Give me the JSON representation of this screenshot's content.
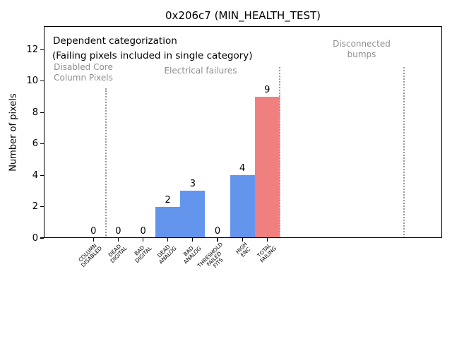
{
  "chart_data": {
    "type": "bar",
    "title": "0x206c7 (MIN_HEALTH_TEST)",
    "ylabel": "Number of pixels",
    "xlabel": "",
    "categories": [
      "COLUMN\nDISABLED",
      "DEAD\nDIGITAL",
      "BAD\nDIGITAL",
      "DEAD\nANALOG",
      "BAD\nANALOG",
      "THRESHOLD\nFAILED\nFITS",
      "HIGH\nENC",
      "TOTAL\nFAILING"
    ],
    "values": [
      0,
      0,
      0,
      2,
      3,
      0,
      4,
      9
    ],
    "colors": [
      "#6495ed",
      "#6495ed",
      "#6495ed",
      "#6495ed",
      "#6495ed",
      "#6495ed",
      "#6495ed",
      "#f08080"
    ],
    "yticks": [
      0,
      2,
      4,
      6,
      8,
      10,
      12
    ],
    "ylim": [
      0,
      13.5
    ],
    "grid": false,
    "legend": null,
    "annotations": {
      "header": "Dependent categorization",
      "subheader": "(Failing pixels included in single category)",
      "color": "#8e8e8e",
      "groups": [
        {
          "label": "Disabled Core\nColumn Pixels"
        },
        {
          "label": "Electrical failures"
        },
        {
          "label": "Disconnected\nbumps"
        }
      ]
    },
    "separator_color": "#999999",
    "separators": [
      {
        "x": 149.9,
        "top": 125
      },
      {
        "x": 396.0,
        "top": 95
      },
      {
        "x": 571.7,
        "top": 95
      }
    ]
  }
}
